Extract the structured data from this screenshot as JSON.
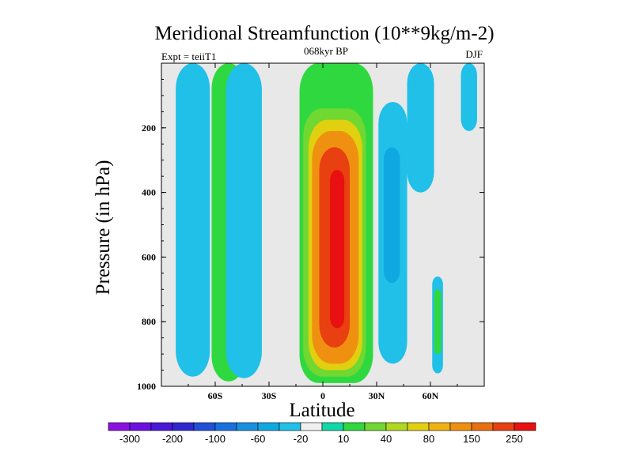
{
  "chart_data": {
    "type": "heatmap",
    "title": "Meridional Streamfunction (10**9kg/m-2)",
    "subtitle_left": "Expt = teiiT1",
    "subtitle_center": "068kyr BP",
    "subtitle_right": "DJF",
    "xlabel": "Latitude",
    "ylabel": "Pressure (in hPa)",
    "xlim": [
      -90,
      90
    ],
    "ylim": [
      1000,
      0
    ],
    "x_ticks": [
      {
        "value": -60,
        "label": "60S"
      },
      {
        "value": -30,
        "label": "30S"
      },
      {
        "value": 0,
        "label": "0"
      },
      {
        "value": 30,
        "label": "30N"
      },
      {
        "value": 60,
        "label": "60N"
      }
    ],
    "y_ticks": [
      {
        "value": 200,
        "label": "200"
      },
      {
        "value": 400,
        "label": "400"
      },
      {
        "value": 600,
        "label": "600"
      },
      {
        "value": 800,
        "label": "800"
      },
      {
        "value": 1000,
        "label": "1000"
      }
    ],
    "background_color": "#e8e8e8",
    "colorbar": {
      "colors": [
        "#8b10e0",
        "#6a10e0",
        "#4a18d8",
        "#3028d0",
        "#2050d8",
        "#1870e0",
        "#1890e0",
        "#10a8e0",
        "#20c0e8",
        "#f0f0f0",
        "#10d8a8",
        "#30d840",
        "#70d830",
        "#b0d820",
        "#e0d010",
        "#f0b010",
        "#f09010",
        "#e87010",
        "#e84010",
        "#e81010"
      ],
      "labels": [
        "-300",
        "-200",
        "-100",
        "-60",
        "-20",
        "10",
        "40",
        "80",
        "150",
        "250"
      ]
    },
    "bands": [
      {
        "lat": [
          -82,
          -63
        ],
        "p_top": 0,
        "p_bot": 970,
        "level_color": "#20c0e8"
      },
      {
        "lat": [
          -62,
          -43
        ],
        "p_top": 0,
        "p_bot": 985,
        "level_color": "#30d840"
      },
      {
        "lat": [
          -54,
          -34
        ],
        "p_top": 0,
        "p_bot": 975,
        "level_color": "#20c0e8"
      },
      {
        "lat": [
          -13,
          28
        ],
        "p_top": 0,
        "p_bot": 990,
        "level_color": "#30d840"
      },
      {
        "lat": [
          -11,
          24
        ],
        "p_top": 140,
        "p_bot": 970,
        "level_color": "#70d830"
      },
      {
        "lat": [
          -8,
          22
        ],
        "p_top": 175,
        "p_bot": 950,
        "level_color": "#e0d010"
      },
      {
        "lat": [
          -6,
          20
        ],
        "p_top": 210,
        "p_bot": 930,
        "level_color": "#f09010"
      },
      {
        "lat": [
          -2,
          15
        ],
        "p_top": 260,
        "p_bot": 880,
        "level_color": "#e84010"
      },
      {
        "lat": [
          4,
          12
        ],
        "p_top": 330,
        "p_bot": 820,
        "level_color": "#e81010"
      },
      {
        "lat": [
          31,
          47
        ],
        "p_top": 120,
        "p_bot": 930,
        "level_color": "#20c0e8"
      },
      {
        "lat": [
          34,
          43
        ],
        "p_top": 260,
        "p_bot": 680,
        "level_color": "#10a8e0"
      },
      {
        "lat": [
          47,
          62
        ],
        "p_top": 0,
        "p_bot": 400,
        "level_color": "#20c0e8"
      },
      {
        "lat": [
          61,
          67
        ],
        "p_top": 660,
        "p_bot": 960,
        "level_color": "#20c0e8"
      },
      {
        "lat": [
          62,
          66
        ],
        "p_top": 700,
        "p_bot": 900,
        "level_color": "#30d840"
      },
      {
        "lat": [
          77,
          86
        ],
        "p_top": 0,
        "p_bot": 210,
        "level_color": "#20c0e8"
      }
    ]
  }
}
